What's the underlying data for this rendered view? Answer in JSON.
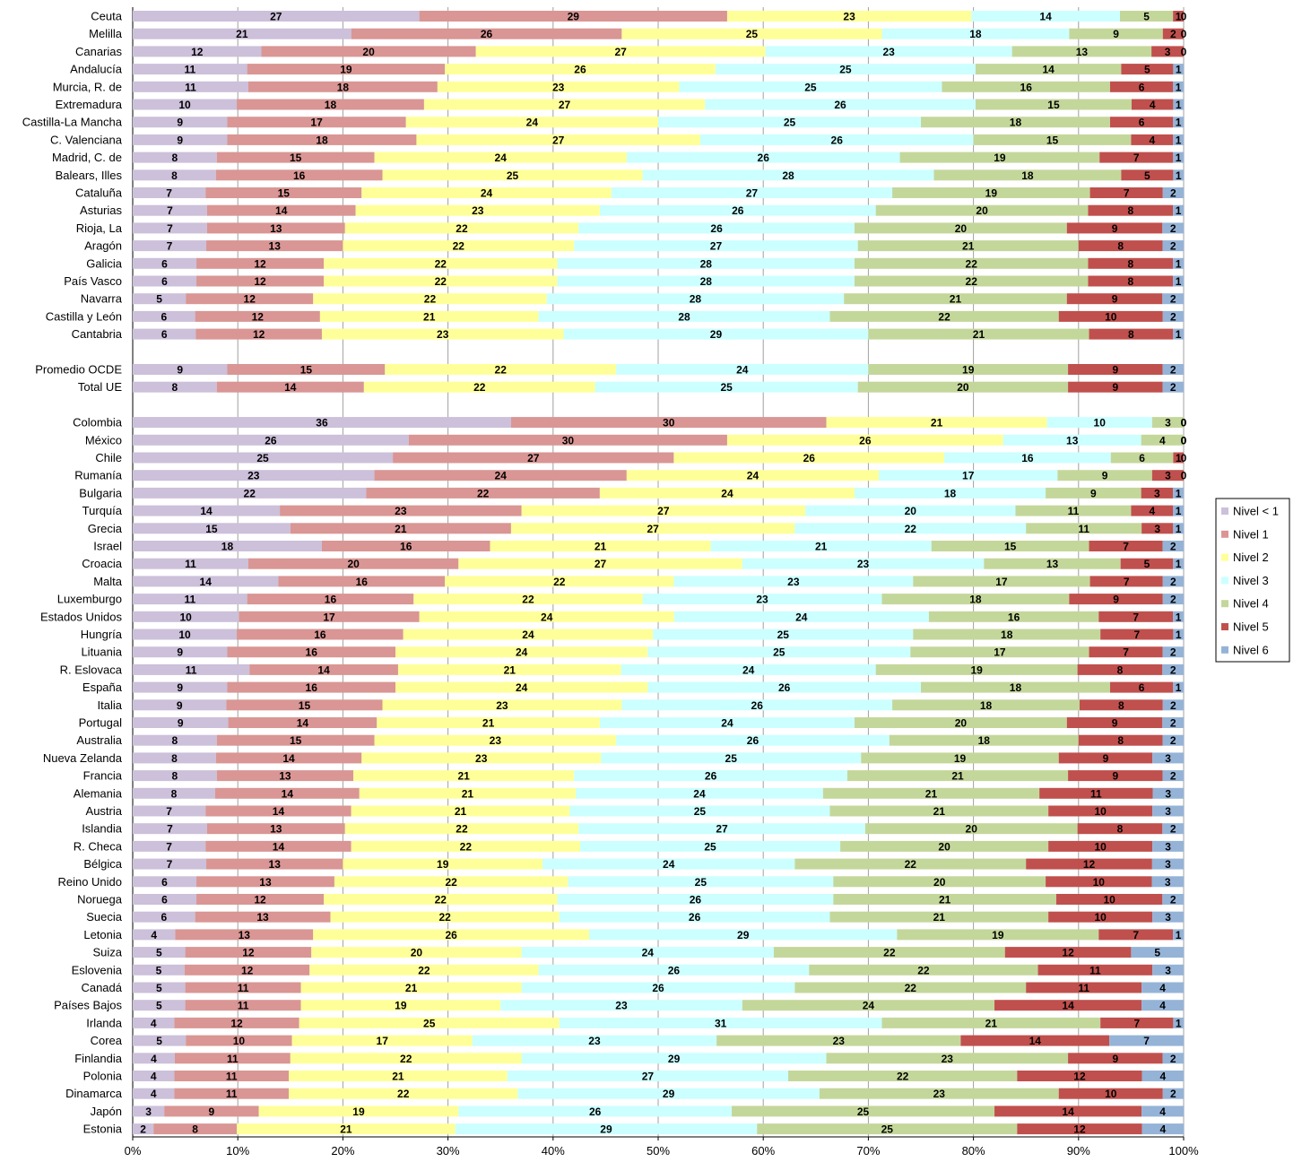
{
  "chart_data": {
    "type": "bar",
    "orientation": "horizontal",
    "stacked": "percent",
    "grid": true,
    "legend_placement": "right",
    "x_ticks": [
      "0%",
      "10%",
      "20%",
      "30%",
      "40%",
      "50%",
      "60%",
      "70%",
      "80%",
      "90%",
      "100%"
    ],
    "xlim": [
      0,
      100
    ],
    "colors": [
      "#ccc0da",
      "#d99694",
      "#ffff99",
      "#ccffff",
      "#c4d79b",
      "#c0504d",
      "#95b3d7"
    ],
    "series": [
      {
        "name": "Nivel < 1"
      },
      {
        "name": "Nivel 1"
      },
      {
        "name": "Nivel 2"
      },
      {
        "name": "Nivel 3"
      },
      {
        "name": "Nivel 4"
      },
      {
        "name": "Nivel 5"
      },
      {
        "name": "Nivel 6"
      }
    ],
    "rows": [
      {
        "name": "Ceuta",
        "values": [
          27,
          29,
          23,
          14,
          5,
          1,
          0
        ]
      },
      {
        "name": "Melilla",
        "values": [
          21,
          26,
          25,
          18,
          9,
          2,
          0
        ]
      },
      {
        "name": "Canarias",
        "values": [
          12,
          20,
          27,
          23,
          13,
          3,
          0
        ]
      },
      {
        "name": "Andalucía",
        "values": [
          11,
          19,
          26,
          25,
          14,
          5,
          1
        ]
      },
      {
        "name": "Murcia, R. de",
        "values": [
          11,
          18,
          23,
          25,
          16,
          6,
          1
        ]
      },
      {
        "name": "Extremadura",
        "values": [
          10,
          18,
          27,
          26,
          15,
          4,
          1
        ]
      },
      {
        "name": "Castilla-La Mancha",
        "values": [
          9,
          17,
          24,
          25,
          18,
          6,
          1
        ]
      },
      {
        "name": "C. Valenciana",
        "values": [
          9,
          18,
          27,
          26,
          15,
          4,
          1
        ]
      },
      {
        "name": "Madrid, C. de",
        "values": [
          8,
          15,
          24,
          26,
          19,
          7,
          1
        ]
      },
      {
        "name": "Balears, Illes",
        "values": [
          8,
          16,
          25,
          28,
          18,
          5,
          1
        ]
      },
      {
        "name": "Cataluña",
        "values": [
          7,
          15,
          24,
          27,
          19,
          7,
          2
        ]
      },
      {
        "name": "Asturias",
        "values": [
          7,
          14,
          23,
          26,
          20,
          8,
          1
        ]
      },
      {
        "name": "Rioja, La",
        "values": [
          7,
          13,
          22,
          26,
          20,
          9,
          2
        ]
      },
      {
        "name": "Aragón",
        "values": [
          7,
          13,
          22,
          27,
          21,
          8,
          2
        ]
      },
      {
        "name": "Galicia",
        "values": [
          6,
          12,
          22,
          28,
          22,
          8,
          1
        ]
      },
      {
        "name": "País Vasco",
        "values": [
          6,
          12,
          22,
          28,
          22,
          8,
          1
        ]
      },
      {
        "name": "Navarra",
        "values": [
          5,
          12,
          22,
          28,
          21,
          9,
          2
        ]
      },
      {
        "name": "Castilla y León",
        "values": [
          6,
          12,
          21,
          28,
          22,
          10,
          2
        ]
      },
      {
        "name": "Cantabria",
        "values": [
          6,
          12,
          23,
          29,
          21,
          8,
          1
        ]
      },
      null,
      {
        "name": "Promedio OCDE",
        "values": [
          9,
          15,
          22,
          24,
          19,
          9,
          2
        ]
      },
      {
        "name": "Total UE",
        "values": [
          8,
          14,
          22,
          25,
          20,
          9,
          2
        ]
      },
      null,
      {
        "name": "Colombia",
        "values": [
          36,
          30,
          21,
          10,
          3,
          0,
          0
        ]
      },
      {
        "name": "México",
        "values": [
          26,
          30,
          26,
          13,
          4,
          0,
          0
        ]
      },
      {
        "name": "Chile",
        "values": [
          25,
          27,
          26,
          16,
          6,
          1,
          0
        ]
      },
      {
        "name": "Rumanía",
        "values": [
          23,
          24,
          24,
          17,
          9,
          3,
          0
        ]
      },
      {
        "name": "Bulgaria",
        "values": [
          22,
          22,
          24,
          18,
          9,
          3,
          1
        ]
      },
      {
        "name": "Turquía",
        "values": [
          14,
          23,
          27,
          20,
          11,
          4,
          1
        ]
      },
      {
        "name": "Grecia",
        "values": [
          15,
          21,
          27,
          22,
          11,
          3,
          1
        ]
      },
      {
        "name": "Israel",
        "values": [
          18,
          16,
          21,
          21,
          15,
          7,
          2
        ]
      },
      {
        "name": "Croacia",
        "values": [
          11,
          20,
          27,
          23,
          13,
          5,
          1
        ]
      },
      {
        "name": "Malta",
        "values": [
          14,
          16,
          22,
          23,
          17,
          7,
          2
        ]
      },
      {
        "name": "Luxemburgo",
        "values": [
          11,
          16,
          22,
          23,
          18,
          9,
          2
        ]
      },
      {
        "name": "Estados Unidos",
        "values": [
          10,
          17,
          24,
          24,
          16,
          7,
          1
        ]
      },
      {
        "name": "Hungría",
        "values": [
          10,
          16,
          24,
          25,
          18,
          7,
          1
        ]
      },
      {
        "name": "Lituania",
        "values": [
          9,
          16,
          24,
          25,
          17,
          7,
          2
        ]
      },
      {
        "name": "R. Eslovaca",
        "values": [
          11,
          14,
          21,
          24,
          19,
          8,
          2
        ]
      },
      {
        "name": "España",
        "values": [
          9,
          16,
          24,
          26,
          18,
          6,
          1
        ]
      },
      {
        "name": "Italia",
        "values": [
          9,
          15,
          23,
          26,
          18,
          8,
          2
        ]
      },
      {
        "name": "Portugal",
        "values": [
          9,
          14,
          21,
          24,
          20,
          9,
          2
        ]
      },
      {
        "name": "Australia",
        "values": [
          8,
          15,
          23,
          26,
          18,
          8,
          2
        ]
      },
      {
        "name": "Nueva Zelanda",
        "values": [
          8,
          14,
          23,
          25,
          19,
          9,
          3
        ]
      },
      {
        "name": "Francia",
        "values": [
          8,
          13,
          21,
          26,
          21,
          9,
          2
        ]
      },
      {
        "name": "Alemania",
        "values": [
          8,
          14,
          21,
          24,
          21,
          11,
          3
        ]
      },
      {
        "name": "Austria",
        "values": [
          7,
          14,
          21,
          25,
          21,
          10,
          3
        ]
      },
      {
        "name": "Islandia",
        "values": [
          7,
          13,
          22,
          27,
          20,
          8,
          2
        ]
      },
      {
        "name": "R. Checa",
        "values": [
          7,
          14,
          22,
          25,
          20,
          10,
          3
        ]
      },
      {
        "name": "Bélgica",
        "values": [
          7,
          13,
          19,
          24,
          22,
          12,
          3
        ]
      },
      {
        "name": "Reino Unido",
        "values": [
          6,
          13,
          22,
          25,
          20,
          10,
          3
        ]
      },
      {
        "name": "Noruega",
        "values": [
          6,
          12,
          22,
          26,
          21,
          10,
          2
        ]
      },
      {
        "name": "Suecia",
        "values": [
          6,
          13,
          22,
          26,
          21,
          10,
          3
        ]
      },
      {
        "name": "Letonia",
        "values": [
          4,
          13,
          26,
          29,
          19,
          7,
          1
        ]
      },
      {
        "name": "Suiza",
        "values": [
          5,
          12,
          20,
          24,
          22,
          12,
          5
        ]
      },
      {
        "name": "Eslovenia",
        "values": [
          5,
          12,
          22,
          26,
          22,
          11,
          3
        ]
      },
      {
        "name": "Canadá",
        "values": [
          5,
          11,
          21,
          26,
          22,
          11,
          4
        ]
      },
      {
        "name": "Países Bajos",
        "values": [
          5,
          11,
          19,
          23,
          24,
          14,
          4
        ]
      },
      {
        "name": "Irlanda",
        "values": [
          4,
          12,
          25,
          31,
          21,
          7,
          1
        ]
      },
      {
        "name": "Corea",
        "values": [
          5,
          10,
          17,
          23,
          23,
          14,
          7
        ]
      },
      {
        "name": "Finlandia",
        "values": [
          4,
          11,
          22,
          29,
          23,
          9,
          2
        ]
      },
      {
        "name": "Polonia",
        "values": [
          4,
          11,
          21,
          27,
          22,
          12,
          4
        ]
      },
      {
        "name": "Dinamarca",
        "values": [
          4,
          11,
          22,
          29,
          23,
          10,
          2
        ]
      },
      {
        "name": "Japón",
        "values": [
          3,
          9,
          19,
          26,
          25,
          14,
          4
        ]
      },
      {
        "name": "Estonia",
        "values": [
          2,
          8,
          21,
          29,
          25,
          12,
          4
        ]
      }
    ]
  }
}
